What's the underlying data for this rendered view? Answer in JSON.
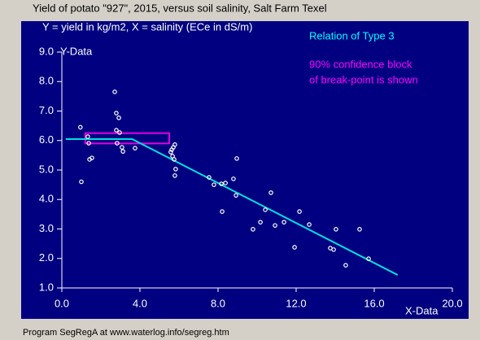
{
  "chart_data": {
    "type": "scatter",
    "title": "Yield of potato \"927\", 2015, versus soil salinity, Salt Farm Texel",
    "subtitle": "Y = yield in kg/m2, X = salinity (ECe in dS/m)",
    "x_label": "X-Data",
    "y_label": "Y-Data",
    "xlim": [
      0,
      20
    ],
    "ylim": [
      1,
      9
    ],
    "xticks": [
      {
        "value": 0,
        "label": "0.0"
      },
      {
        "value": 4,
        "label": "4.0"
      },
      {
        "value": 8,
        "label": "8.0"
      },
      {
        "value": 12,
        "label": "12.0"
      },
      {
        "value": 16,
        "label": "16.0"
      },
      {
        "value": 20,
        "label": "20.0"
      }
    ],
    "yticks": [
      {
        "value": 1,
        "label": "1.0"
      },
      {
        "value": 2,
        "label": "2.0"
      },
      {
        "value": 3,
        "label": "3.0"
      },
      {
        "value": 4,
        "label": "4.0"
      },
      {
        "value": 5,
        "label": "5.0"
      },
      {
        "value": 6,
        "label": "6.0"
      },
      {
        "value": 7,
        "label": "7.0"
      },
      {
        "value": 8,
        "label": "8.0"
      },
      {
        "value": 9,
        "label": "9.0"
      }
    ],
    "points": {
      "color": "#ffffff",
      "x": [
        0.95,
        1.0,
        1.33,
        1.38,
        1.42,
        1.54,
        2.71,
        2.79,
        2.92,
        2.79,
        2.96,
        2.83,
        3.08,
        3.13,
        3.75,
        5.58,
        5.63,
        5.71,
        5.79,
        5.67,
        5.75,
        5.83,
        5.79,
        7.54,
        7.79,
        8.17,
        8.38,
        8.79,
        8.96,
        8.92,
        8.21,
        9.79,
        10.17,
        10.42,
        10.71,
        10.92,
        11.38,
        11.92,
        12.17,
        12.67,
        13.75,
        13.92,
        14.04,
        14.54,
        15.25,
        15.71
      ],
      "values": [
        6.45,
        4.6,
        6.13,
        5.91,
        5.36,
        5.41,
        7.65,
        6.93,
        6.77,
        6.35,
        6.27,
        5.91,
        5.77,
        5.63,
        5.74,
        5.61,
        5.69,
        5.77,
        5.86,
        5.47,
        5.36,
        5.03,
        4.81,
        4.75,
        4.5,
        4.53,
        4.56,
        4.7,
        5.39,
        4.14,
        3.59,
        2.99,
        3.23,
        3.65,
        4.23,
        3.12,
        3.23,
        2.38,
        3.59,
        3.15,
        2.35,
        2.3,
        2.99,
        1.77,
        2.99,
        1.99
      ]
    },
    "fit": {
      "color": "#00e0e0",
      "x": [
        0.2,
        3.6,
        17.2
      ],
      "values": [
        6.05,
        6.05,
        1.44
      ]
    },
    "confidence_block": {
      "color": "#e000e0",
      "x": [
        1.2,
        5.5
      ],
      "y": [
        5.9,
        6.25
      ]
    },
    "annotations": [
      {
        "text": "Relation of Type 3",
        "color": "#00ffff"
      },
      {
        "text": "90% confidence block",
        "color": "#ff00ff"
      },
      {
        "text": "of break-point is shown",
        "color": "#ff00ff"
      }
    ]
  },
  "footer": "Program SegRegA at www.waterlog.info/segreg.htm"
}
